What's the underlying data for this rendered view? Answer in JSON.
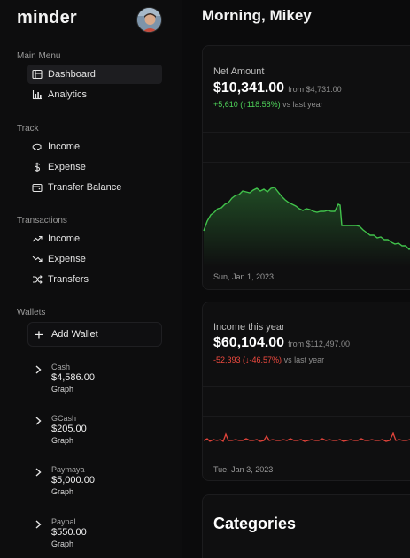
{
  "app": {
    "name": "minder"
  },
  "header": {
    "greeting": "Morning, Mikey"
  },
  "sidebar": {
    "main_menu": {
      "label": "Main Menu",
      "items": [
        {
          "label": "Dashboard",
          "icon": "dashboard-icon",
          "active": true
        },
        {
          "label": "Analytics",
          "icon": "bar-chart-icon",
          "active": false
        }
      ]
    },
    "track": {
      "label": "Track",
      "items": [
        {
          "label": "Income",
          "icon": "piggy-bank-icon"
        },
        {
          "label": "Expense",
          "icon": "dollar-icon"
        },
        {
          "label": "Transfer Balance",
          "icon": "wallet-icon"
        }
      ]
    },
    "transactions": {
      "label": "Transactions",
      "items": [
        {
          "label": "Income",
          "icon": "trend-up-icon"
        },
        {
          "label": "Expense",
          "icon": "trend-down-icon"
        },
        {
          "label": "Transfers",
          "icon": "shuffle-icon"
        }
      ]
    },
    "wallets": {
      "label": "Wallets",
      "add_label": "Add Wallet",
      "items": [
        {
          "name": "Cash",
          "amount": "$4,586.00",
          "graph_label": "Graph"
        },
        {
          "name": "GCash",
          "amount": "$205.00",
          "graph_label": "Graph"
        },
        {
          "name": "Paymaya",
          "amount": "$5,000.00",
          "graph_label": "Graph"
        },
        {
          "name": "Paypal",
          "amount": "$550.00",
          "graph_label": "Graph"
        }
      ]
    }
  },
  "cards": {
    "net": {
      "title": "Net Amount",
      "amount": "$10,341.00",
      "from": "from $4,731.00",
      "change": "+5,610 (↑118.58%)",
      "vs": "vs last year",
      "date": "Sun, Jan 1, 2023",
      "color": "#4fd35a"
    },
    "income": {
      "title": "Income this year",
      "amount": "$60,104.00",
      "from": "from $112,497.00",
      "change": "-52,393 (↓-46.57%)",
      "vs": "vs last year",
      "date": "Tue, Jan 3, 2023",
      "color": "#ef4a3f"
    },
    "categories": {
      "title": "Categories"
    }
  }
}
